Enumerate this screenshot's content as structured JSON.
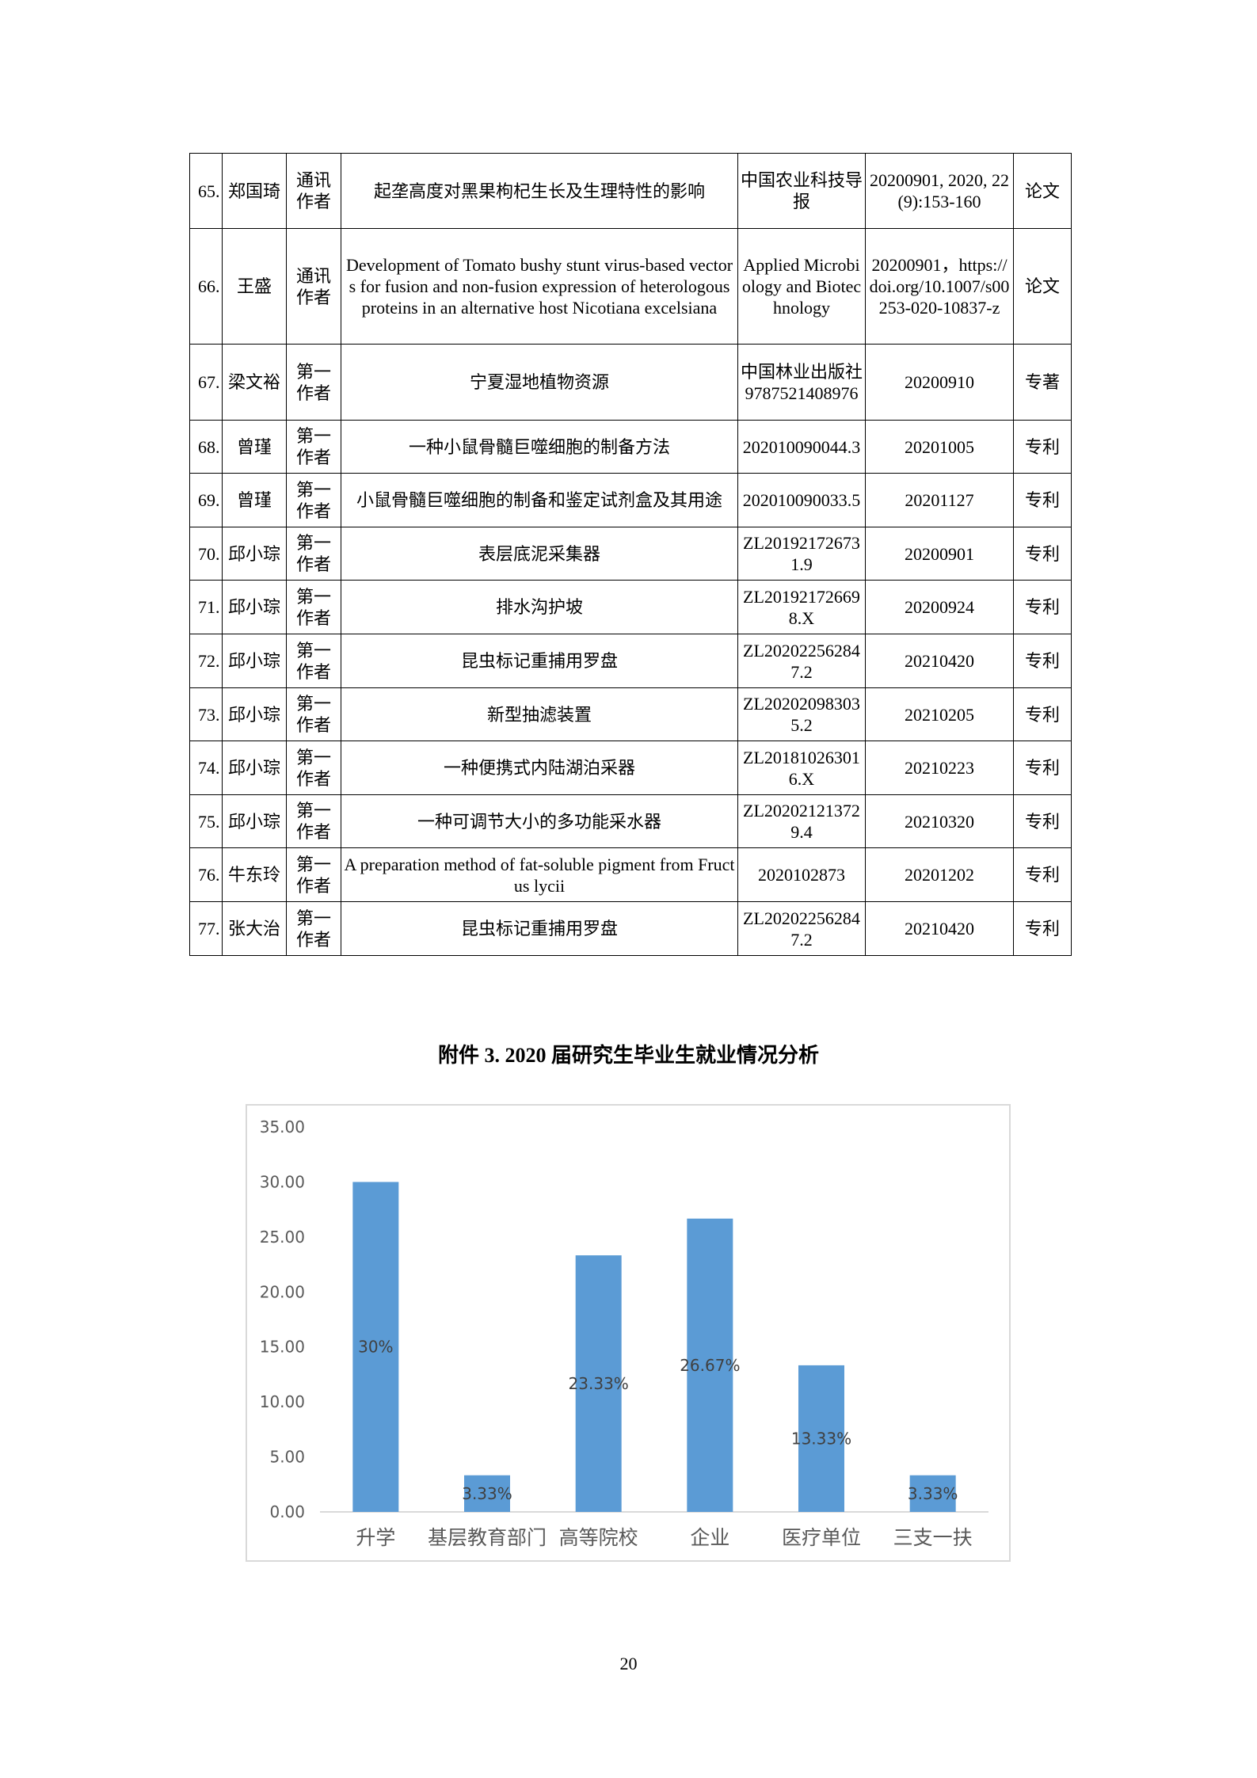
{
  "table": {
    "rows": [
      {
        "no": "65.",
        "name": "郑国琦",
        "role": "通讯作者",
        "title": "起垄高度对黑果枸杞生长及生理特性的影响",
        "source": "中国农业科技导报",
        "date": "20200901, 2020, 22(9):153-160",
        "type": "论文"
      },
      {
        "no": "66.",
        "name": "王盛",
        "role": "通讯作者",
        "title": "Development of Tomato bushy stunt virus-based vectors for fusion and non-fusion expression of heterologous proteins in an alternative host Nicotiana excelsiana",
        "source": "Applied Microbiology and Biotechnology",
        "date": "20200901，https://doi.org/10.1007/s00253-020-10837-z",
        "type": "论文"
      },
      {
        "no": "67.",
        "name": "梁文裕",
        "role": "第一作者",
        "title": "宁夏湿地植物资源",
        "source": "中国林业出版社9787521408976",
        "date": "20200910",
        "type": "专著"
      },
      {
        "no": "68.",
        "name": "曾瑾",
        "role": "第一作者",
        "title": "一种小鼠骨髓巨噬细胞的制备方法",
        "source": "202010090044.3",
        "date": "20201005",
        "type": "专利"
      },
      {
        "no": "69.",
        "name": "曾瑾",
        "role": "第一作者",
        "title": "小鼠骨髓巨噬细胞的制备和鉴定试剂盒及其用途",
        "source": "202010090033.5",
        "date": "20201127",
        "type": "专利"
      },
      {
        "no": "70.",
        "name": "邱小琮",
        "role": "第一作者",
        "title": "表层底泥采集器",
        "source": "ZL201921726731.9",
        "date": "20200901",
        "type": "专利"
      },
      {
        "no": "71.",
        "name": "邱小琮",
        "role": "第一作者",
        "title": "排水沟护坡",
        "source": "ZL201921726698.X",
        "date": "20200924",
        "type": "专利"
      },
      {
        "no": "72.",
        "name": "邱小琮",
        "role": "第一作者",
        "title": "昆虫标记重捕用罗盘",
        "source": "ZL202022562847.2",
        "date": "20210420",
        "type": "专利"
      },
      {
        "no": "73.",
        "name": "邱小琮",
        "role": "第一作者",
        "title": "新型抽滤装置",
        "source": "ZL202020983035.2",
        "date": "20210205",
        "type": "专利"
      },
      {
        "no": "74.",
        "name": "邱小琮",
        "role": "第一作者",
        "title": "一种便携式内陆湖泊采器",
        "source": "ZL201810263016.X",
        "date": "20210223",
        "type": "专利"
      },
      {
        "no": "75.",
        "name": "邱小琮",
        "role": "第一作者",
        "title": "一种可调节大小的多功能采水器",
        "source": "ZL202021213729.4",
        "date": "20210320",
        "type": "专利"
      },
      {
        "no": "76.",
        "name": "牛东玲",
        "role": "第一作者",
        "title": "A preparation method of fat-soluble pigment from Fructus lycii",
        "source": "2020102873",
        "date": "20201202",
        "type": "专利"
      },
      {
        "no": "77.",
        "name": "张大治",
        "role": "第一作者",
        "title": "昆虫标记重捕用罗盘",
        "source": "ZL202022562847.2",
        "date": "20210420",
        "type": "专利"
      }
    ]
  },
  "chart_title": "附件 3. 2020 届研究生毕业生就业情况分析",
  "chart_data": {
    "type": "bar",
    "title": "附件 3. 2020 届研究生毕业生就业情况分析",
    "categories": [
      "升学",
      "基层教育部门",
      "高等院校",
      "企业",
      "医疗单位",
      "三支一扶"
    ],
    "values": [
      30,
      3.33,
      23.33,
      26.67,
      13.33,
      3.33
    ],
    "data_labels": [
      "30%",
      "3.33%",
      "23.33%",
      "26.67%",
      "13.33%",
      "3.33%"
    ],
    "yticks": [
      "0.00",
      "5.00",
      "10.00",
      "15.00",
      "20.00",
      "25.00",
      "30.00",
      "35.00"
    ],
    "ylim": [
      0,
      35
    ],
    "grid": false,
    "bar_color": "#5B9BD5",
    "label_color": "#404040"
  },
  "page_number": "20"
}
